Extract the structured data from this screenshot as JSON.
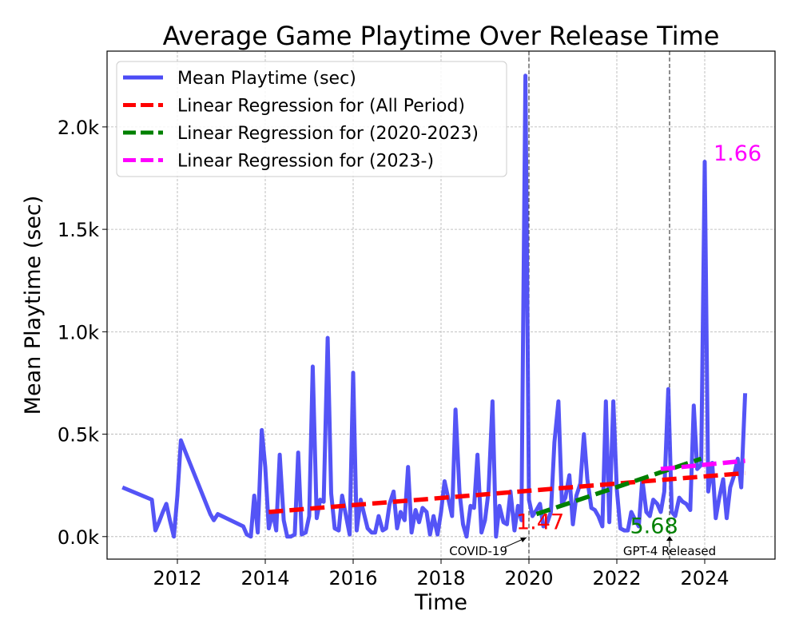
{
  "chart_data": {
    "type": "line",
    "title": "Average Game Playtime Over Release Time",
    "xlabel": "Time",
    "ylabel": "Mean Playtime (sec)",
    "xlim": [
      2010.4,
      2025.6
    ],
    "ylim": [
      -110,
      2370
    ],
    "x_ticks": [
      2012,
      2014,
      2016,
      2018,
      2020,
      2022,
      2024
    ],
    "x_tick_labels": [
      "2012",
      "2014",
      "2016",
      "2018",
      "2020",
      "2022",
      "2024"
    ],
    "y_ticks": [
      0,
      500,
      1000,
      1500,
      2000
    ],
    "y_tick_labels": [
      "0.0k",
      "0.5k",
      "1.0k",
      "1.5k",
      "2.0k"
    ],
    "grid": true,
    "legend_position": "top-left",
    "series": [
      {
        "name": "Mean Playtime (sec)",
        "color": "#4b4bf5",
        "style": "solid",
        "x": [
          2010.75,
          2011.42,
          2011.5,
          2011.58,
          2011.67,
          2011.75,
          2011.83,
          2011.92,
          2012.0,
          2012.08,
          2012.17,
          2012.75,
          2012.83,
          2012.92,
          2013.5,
          2013.58,
          2013.67,
          2013.75,
          2013.83,
          2013.92,
          2014.0,
          2014.08,
          2014.17,
          2014.25,
          2014.33,
          2014.42,
          2014.5,
          2014.58,
          2014.67,
          2014.75,
          2014.83,
          2014.92,
          2015.0,
          2015.08,
          2015.17,
          2015.25,
          2015.33,
          2015.42,
          2015.5,
          2015.58,
          2015.67,
          2015.75,
          2015.83,
          2015.92,
          2016.0,
          2016.08,
          2016.17,
          2016.25,
          2016.33,
          2016.42,
          2016.5,
          2016.58,
          2016.67,
          2016.75,
          2016.83,
          2016.92,
          2017.0,
          2017.08,
          2017.17,
          2017.25,
          2017.33,
          2017.42,
          2017.5,
          2017.58,
          2017.67,
          2017.75,
          2017.83,
          2017.92,
          2018.0,
          2018.08,
          2018.17,
          2018.25,
          2018.33,
          2018.42,
          2018.5,
          2018.58,
          2018.67,
          2018.75,
          2018.83,
          2018.92,
          2019.0,
          2019.08,
          2019.17,
          2019.25,
          2019.33,
          2019.42,
          2019.5,
          2019.58,
          2019.67,
          2019.75,
          2019.83,
          2019.92,
          2020.0,
          2020.08,
          2020.17,
          2020.25,
          2020.33,
          2020.42,
          2020.5,
          2020.58,
          2020.67,
          2020.75,
          2020.83,
          2020.92,
          2021.0,
          2021.08,
          2021.17,
          2021.25,
          2021.33,
          2021.42,
          2021.5,
          2021.58,
          2021.67,
          2021.75,
          2021.83,
          2021.92,
          2022.0,
          2022.08,
          2022.17,
          2022.25,
          2022.33,
          2022.42,
          2022.5,
          2022.58,
          2022.67,
          2022.75,
          2022.83,
          2022.92,
          2023.0,
          2023.08,
          2023.17,
          2023.25,
          2023.33,
          2023.42,
          2023.5,
          2023.58,
          2023.67,
          2023.75,
          2023.83,
          2023.92,
          2024.0,
          2024.08,
          2024.17,
          2024.25,
          2024.33,
          2024.42,
          2024.5,
          2024.58,
          2024.67,
          2024.75,
          2024.83,
          2024.92
        ],
        "y": [
          240,
          180,
          30,
          70,
          120,
          160,
          80,
          0,
          200,
          470,
          420,
          110,
          80,
          110,
          50,
          10,
          0,
          200,
          20,
          520,
          340,
          40,
          120,
          30,
          400,
          80,
          0,
          0,
          10,
          410,
          10,
          20,
          100,
          830,
          90,
          180,
          170,
          970,
          210,
          40,
          30,
          200,
          110,
          10,
          800,
          30,
          180,
          110,
          40,
          20,
          20,
          100,
          30,
          40,
          160,
          220,
          40,
          120,
          80,
          340,
          20,
          130,
          70,
          140,
          120,
          10,
          100,
          10,
          120,
          270,
          180,
          100,
          620,
          220,
          60,
          0,
          150,
          140,
          400,
          20,
          80,
          220,
          660,
          0,
          150,
          70,
          60,
          220,
          30,
          150,
          80,
          2250,
          180,
          100,
          130,
          160,
          50,
          70,
          120,
          460,
          660,
          160,
          190,
          300,
          60,
          200,
          260,
          500,
          280,
          140,
          130,
          100,
          50,
          660,
          70,
          660,
          230,
          40,
          30,
          30,
          120,
          80,
          50,
          280,
          120,
          100,
          180,
          160,
          120,
          220,
          720,
          120,
          100,
          190,
          170,
          160,
          130,
          640,
          330,
          350,
          1830,
          220,
          360,
          90,
          190,
          280,
          90,
          240,
          300,
          380,
          240,
          700
        ]
      },
      {
        "name": "Linear Regression for (All Period)",
        "color": "#ff0000",
        "style": "dashed",
        "x": [
          2014.08,
          2024.92
        ],
        "y": [
          120,
          310
        ],
        "slope_label": "1.47"
      },
      {
        "name": "Linear Regression for (2020-2023)",
        "color": "#008000",
        "style": "dashed",
        "x": [
          2020.17,
          2023.92
        ],
        "y": [
          110,
          380
        ],
        "slope_label": "5.68"
      },
      {
        "name": "Linear Regression for (2023-)",
        "color": "#ff00ff",
        "style": "dashed",
        "x": [
          2023.0,
          2024.92
        ],
        "y": [
          330,
          370
        ],
        "slope_label": "1.66"
      }
    ],
    "vertical_lines": [
      {
        "x": 2020.0,
        "label": "COVID-19"
      },
      {
        "x": 2023.2,
        "label": "GPT-4 Released"
      }
    ]
  }
}
